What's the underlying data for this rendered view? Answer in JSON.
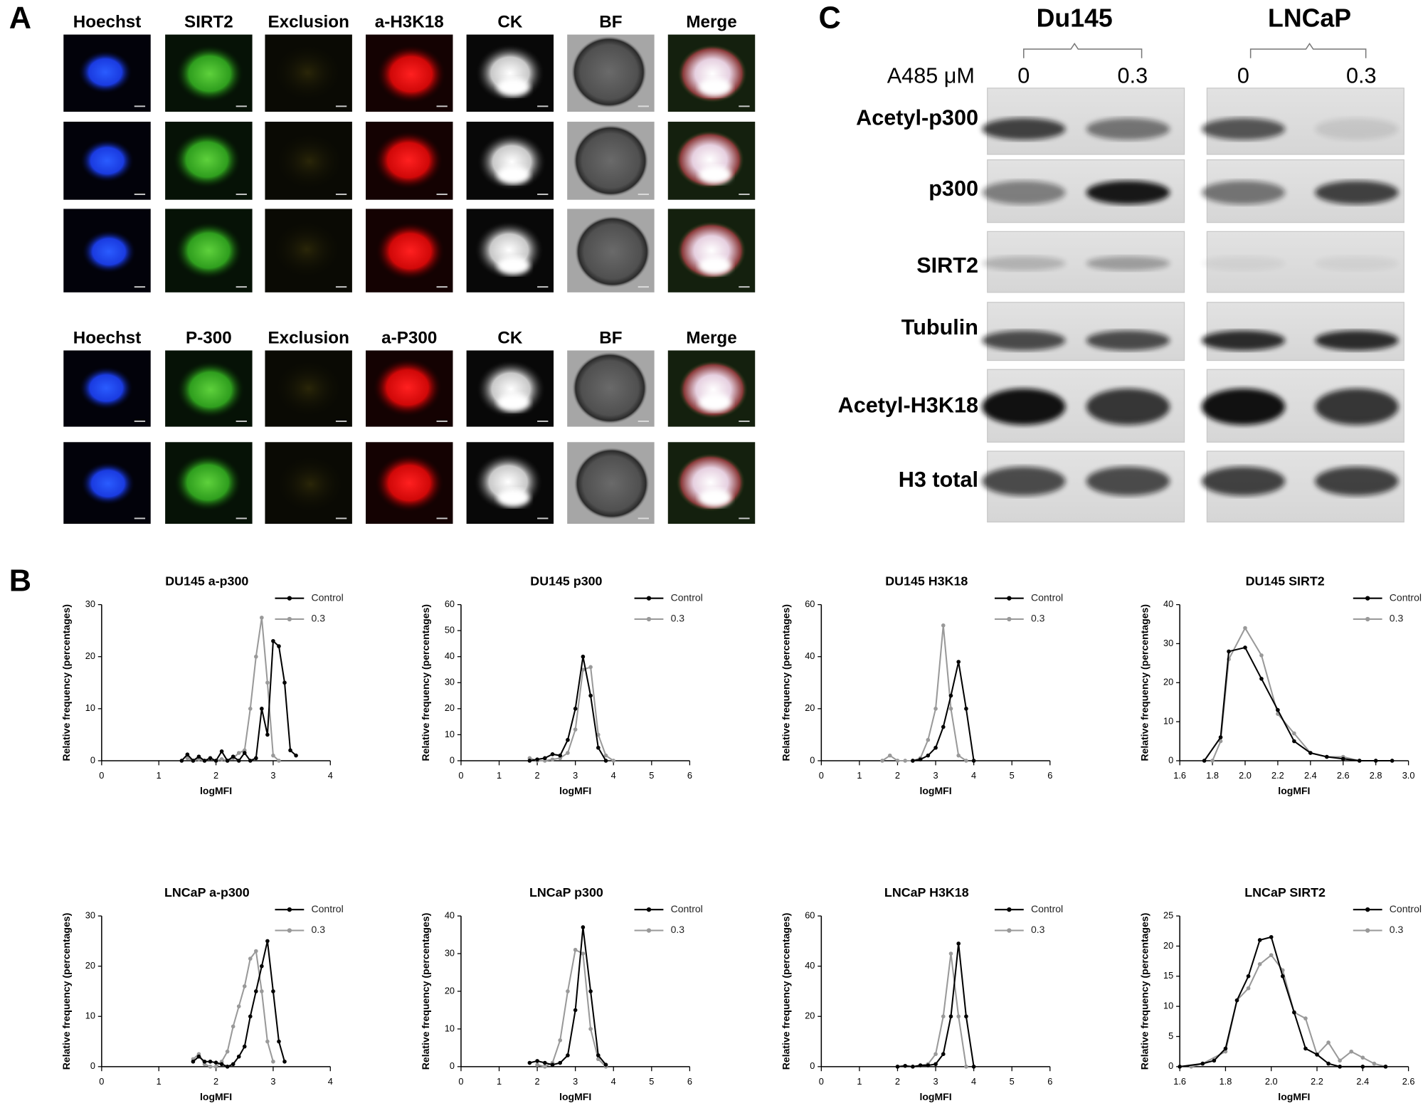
{
  "panel_labels": [
    "A",
    "B",
    "C"
  ],
  "panel_a": {
    "header_rows": [
      [
        "Hoechst",
        "SIRT2",
        "Exclusion",
        "a-H3K18",
        "CK",
        "BF",
        "Merge"
      ],
      [
        "Hoechst",
        "P-300",
        "Exclusion",
        "a-P300",
        "CK",
        "BF",
        "Merge"
      ]
    ]
  },
  "panel_c": {
    "cell_lines": [
      "Du145",
      "LNCaP"
    ],
    "treatment_label": "A485 μM",
    "lanes": [
      "0",
      "0.3",
      "0",
      "0.3"
    ],
    "rows": [
      "Acetyl-p300",
      "p300",
      "SIRT2",
      "Tubulin",
      "Acetyl-H3K18",
      "H3 total"
    ]
  },
  "chart_data": [
    {
      "type": "line",
      "title": "DU145 a-p300",
      "x_label": "logMFI",
      "y_label": "Relative frequency (percentages)",
      "xlim": [
        0,
        4
      ],
      "ylim": [
        0,
        30
      ],
      "xticks": [
        0,
        1,
        2,
        3,
        4
      ],
      "yticks": [
        0,
        10,
        20,
        30
      ],
      "series": [
        {
          "name": "Control",
          "color": "#000000",
          "x": [
            1.4,
            1.5,
            1.6,
            1.7,
            1.8,
            1.9,
            2.0,
            2.1,
            2.2,
            2.3,
            2.4,
            2.5,
            2.6,
            2.7,
            2.8,
            2.9,
            3.0,
            3.1,
            3.2,
            3.3,
            3.4
          ],
          "values": [
            0,
            1.2,
            0,
            0.8,
            0,
            0.5,
            0,
            1.8,
            0,
            0.8,
            0,
            1.5,
            0,
            0.5,
            10,
            5,
            23,
            22,
            15,
            2,
            1
          ]
        },
        {
          "name": "0.3",
          "color": "#999999",
          "x": [
            1.5,
            1.6,
            1.7,
            1.8,
            1.9,
            2.0,
            2.1,
            2.2,
            2.3,
            2.4,
            2.5,
            2.6,
            2.7,
            2.8,
            2.9,
            3.0,
            3.1
          ],
          "values": [
            0.5,
            0,
            0.3,
            0,
            0.5,
            0,
            0.3,
            0,
            0.5,
            1.5,
            2,
            10,
            20,
            27.5,
            15,
            1,
            0
          ]
        }
      ]
    },
    {
      "type": "line",
      "title": "DU145 p300",
      "x_label": "logMFI",
      "y_label": "Relative frequency (percentages)",
      "xlim": [
        0,
        6
      ],
      "ylim": [
        0,
        60
      ],
      "xticks": [
        0,
        1,
        2,
        3,
        4,
        5,
        6
      ],
      "yticks": [
        0,
        10,
        20,
        30,
        40,
        50,
        60
      ],
      "series": [
        {
          "name": "Control",
          "color": "#000000",
          "x": [
            1.8,
            2.0,
            2.2,
            2.4,
            2.6,
            2.8,
            3.0,
            3.2,
            3.4,
            3.6,
            3.8
          ],
          "values": [
            0,
            0.5,
            1,
            2.5,
            2,
            8,
            20,
            40,
            25,
            5,
            0
          ]
        },
        {
          "name": "0.3",
          "color": "#999999",
          "x": [
            1.8,
            2.0,
            2.2,
            2.4,
            2.6,
            2.8,
            3.0,
            3.2,
            3.4,
            3.6,
            3.8,
            4.0
          ],
          "values": [
            1,
            0,
            0,
            0.5,
            1,
            3,
            12,
            35,
            36,
            10,
            2,
            0
          ]
        }
      ]
    },
    {
      "type": "line",
      "title": "DU145 H3K18",
      "x_label": "logMFI",
      "y_label": "Relative frequency (percentages)",
      "xlim": [
        0,
        6
      ],
      "ylim": [
        0,
        60
      ],
      "xticks": [
        0,
        1,
        2,
        3,
        4,
        5,
        6
      ],
      "yticks": [
        0,
        20,
        40,
        60
      ],
      "series": [
        {
          "name": "Control",
          "color": "#000000",
          "x": [
            2.4,
            2.6,
            2.8,
            3.0,
            3.2,
            3.4,
            3.6,
            3.8,
            4.0
          ],
          "values": [
            0,
            0.5,
            2,
            5,
            13,
            25,
            38,
            20,
            0
          ]
        },
        {
          "name": "0.3",
          "color": "#999999",
          "x": [
            1.6,
            1.8,
            2.0,
            2.2,
            2.4,
            2.6,
            2.8,
            3.0,
            3.2,
            3.4,
            3.6,
            3.8
          ],
          "values": [
            0,
            2,
            0,
            0,
            0,
            1,
            8,
            20,
            52,
            20,
            2,
            0
          ]
        }
      ]
    },
    {
      "type": "line",
      "title": "DU145 SIRT2",
      "x_label": "logMFI",
      "y_label": "Relative frequency (percentages)",
      "xlim": [
        1.6,
        3.0
      ],
      "ylim": [
        0,
        40
      ],
      "xticks": [
        1.6,
        1.8,
        {
          "value": 2,
          "label": "2.0"
        },
        2.2,
        2.4,
        2.6,
        2.8,
        {
          "value": 3,
          "label": "3.0"
        }
      ],
      "yticks": [
        0,
        10,
        20,
        30,
        40
      ],
      "series": [
        {
          "name": "Control",
          "color": "#000000",
          "x": [
            1.75,
            1.85,
            1.9,
            2.0,
            2.1,
            2.2,
            2.3,
            2.4,
            2.5,
            2.6,
            2.7,
            2.8,
            2.9
          ],
          "values": [
            0,
            6,
            28,
            29,
            21,
            13,
            5,
            2,
            1,
            0.5,
            0,
            0,
            0
          ]
        },
        {
          "name": "0.3",
          "color": "#999999",
          "x": [
            1.8,
            1.85,
            1.9,
            2.0,
            2.1,
            2.2,
            2.3,
            2.4,
            2.5,
            2.6,
            2.7
          ],
          "values": [
            0,
            5,
            26,
            34,
            27,
            12,
            7,
            2,
            1,
            1,
            0
          ]
        }
      ]
    },
    {
      "type": "line",
      "title": "LNCaP a-p300",
      "x_label": "logMFI",
      "y_label": "Relative frequency (percentages)",
      "xlim": [
        0,
        4
      ],
      "ylim": [
        0,
        30
      ],
      "xticks": [
        0,
        1,
        2,
        3,
        4
      ],
      "yticks": [
        0,
        10,
        20,
        30
      ],
      "series": [
        {
          "name": "Control",
          "color": "#000000",
          "x": [
            1.6,
            1.7,
            1.8,
            1.9,
            2.0,
            2.1,
            2.2,
            2.3,
            2.4,
            2.5,
            2.6,
            2.7,
            2.8,
            2.9,
            3.0,
            3.1,
            3.2
          ],
          "values": [
            1,
            2,
            1,
            1,
            0.8,
            0.5,
            0,
            0.5,
            2,
            4,
            10,
            15,
            20,
            25,
            15,
            5,
            1
          ]
        },
        {
          "name": "0.3",
          "color": "#999999",
          "x": [
            1.6,
            1.7,
            1.8,
            1.9,
            2.0,
            2.1,
            2.2,
            2.3,
            2.4,
            2.5,
            2.6,
            2.7,
            2.8,
            2.9,
            3.0
          ],
          "values": [
            1.5,
            2.5,
            0.5,
            0,
            0,
            1,
            3,
            8,
            12,
            16,
            21.5,
            23,
            15,
            5,
            1
          ]
        }
      ]
    },
    {
      "type": "line",
      "title": "LNCaP p300",
      "x_label": "logMFI",
      "y_label": "Relative frequency (percentages)",
      "xlim": [
        0,
        6
      ],
      "ylim": [
        0,
        40
      ],
      "xticks": [
        0,
        1,
        2,
        3,
        4,
        5,
        6
      ],
      "yticks": [
        0,
        10,
        20,
        30,
        40
      ],
      "series": [
        {
          "name": "Control",
          "color": "#000000",
          "x": [
            1.8,
            2.0,
            2.2,
            2.4,
            2.6,
            2.8,
            3.0,
            3.2,
            3.4,
            3.6,
            3.8
          ],
          "values": [
            1,
            1.5,
            1,
            0.5,
            1,
            3,
            15,
            37,
            20,
            3,
            0.5
          ]
        },
        {
          "name": "0.3",
          "color": "#999999",
          "x": [
            2.0,
            2.2,
            2.4,
            2.6,
            2.8,
            3.0,
            3.2,
            3.4,
            3.6,
            3.8
          ],
          "values": [
            0.5,
            0,
            1,
            7,
            20,
            31,
            30,
            10,
            2,
            0
          ]
        }
      ]
    },
    {
      "type": "line",
      "title": "LNCaP H3K18",
      "x_label": "logMFI",
      "y_label": "Relative frequency (percentages)",
      "xlim": [
        0,
        6
      ],
      "ylim": [
        0,
        60
      ],
      "xticks": [
        0,
        1,
        2,
        3,
        4,
        5,
        6
      ],
      "yticks": [
        0,
        20,
        40,
        60
      ],
      "series": [
        {
          "name": "Control",
          "color": "#000000",
          "x": [
            2.0,
            2.2,
            2.4,
            2.6,
            2.8,
            3.0,
            3.2,
            3.4,
            3.6,
            3.8,
            4.0
          ],
          "values": [
            0,
            0.3,
            0,
            0.5,
            0.5,
            1,
            5,
            20,
            49,
            20,
            0
          ]
        },
        {
          "name": "0.3",
          "color": "#999999",
          "x": [
            2.6,
            2.8,
            3.0,
            3.2,
            3.4,
            3.6,
            3.8
          ],
          "values": [
            0.5,
            1,
            5,
            20,
            45,
            20,
            0
          ]
        }
      ]
    },
    {
      "type": "line",
      "title": "LNCaP SIRT2",
      "x_label": "logMFI",
      "y_label": "Relative frequency (percentages)",
      "xlim": [
        1.6,
        2.6
      ],
      "ylim": [
        0,
        25
      ],
      "xticks": [
        1.6,
        1.8,
        {
          "value": 2,
          "label": "2.0"
        },
        2.2,
        2.4,
        2.6
      ],
      "yticks": [
        0,
        5,
        10,
        15,
        20,
        25
      ],
      "series": [
        {
          "name": "Control",
          "color": "#000000",
          "x": [
            1.6,
            1.7,
            1.75,
            1.8,
            1.85,
            1.9,
            1.95,
            2.0,
            2.05,
            2.1,
            2.15,
            2.2,
            2.25,
            2.3,
            2.4,
            2.5
          ],
          "values": [
            0,
            0.5,
            1,
            3,
            11,
            15,
            21,
            21.5,
            15,
            9,
            3,
            2,
            0.5,
            0,
            0,
            0
          ]
        },
        {
          "name": "0.3",
          "color": "#999999",
          "x": [
            1.65,
            1.7,
            1.8,
            1.85,
            1.9,
            1.95,
            2.0,
            2.05,
            2.1,
            2.15,
            2.2,
            2.25,
            2.3,
            2.35,
            2.4,
            2.45,
            2.5
          ],
          "values": [
            0,
            0.5,
            2.5,
            11,
            13,
            17,
            18.5,
            16,
            9,
            8,
            2,
            4,
            1,
            2.5,
            1.5,
            0.5,
            0
          ]
        }
      ]
    }
  ]
}
